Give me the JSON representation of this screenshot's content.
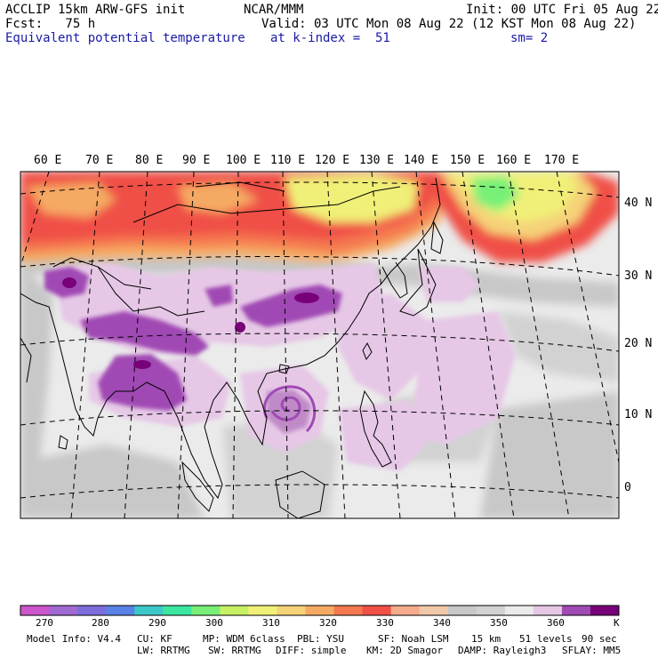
{
  "header": {
    "line1_left": "ACCLIP 15km ARW-GFS init",
    "line1_mid": "NCAR/MMM",
    "line1_right": "Init: 00 UTC Fri 05 Aug 22",
    "line2_left": "Fcst:   75 h",
    "line2_right": "Valid: 03 UTC Mon 08 Aug 22 (12 KST Mon 08 Aug 22)",
    "line3_left": "Equivalent potential temperature",
    "line3_mid": "at k-index =  51",
    "line3_right": "sm= 2"
  },
  "map": {
    "lon_labels": [
      "60 E",
      "70 E",
      "80 E",
      "90 E",
      "100 E",
      "110 E",
      "120 E",
      "130 E",
      "140 E",
      "150 E",
      "160 E",
      "170 E"
    ],
    "lat_labels": [
      "40 N",
      "30 N",
      "20 N",
      "10 N",
      "0"
    ]
  },
  "colorbar": {
    "colors": [
      "#cc55cc",
      "#a06ad2",
      "#7b6ddc",
      "#5a82e6",
      "#3cc8c8",
      "#3ce6a0",
      "#78f078",
      "#c8f064",
      "#f0f078",
      "#f5d278",
      "#f5aa64",
      "#f57850",
      "#f05046",
      "#f5aa8c",
      "#f0c8aa",
      "#c8c8c8",
      "#d2d2d2",
      "#ebebeb",
      "#e6c8e6",
      "#a04ab4",
      "#780078"
    ],
    "tick_labels": [
      "270",
      "280",
      "290",
      "300",
      "310",
      "320",
      "330",
      "340",
      "350",
      "360"
    ],
    "unit": "K"
  },
  "footer": {
    "line1": [
      "Model Info: V4.4",
      "CU: KF",
      "MP: WDM 6class",
      "PBL: YSU",
      "SF: Noah LSM",
      "15 km",
      "51 levels",
      "90 sec"
    ],
    "line2": [
      "LW: RRTMG",
      "SW: RRTMG",
      "DIFF: simple",
      "KM: 2D Smagor",
      "DAMP: Rayleigh3",
      "SFLAY: MM5"
    ]
  }
}
